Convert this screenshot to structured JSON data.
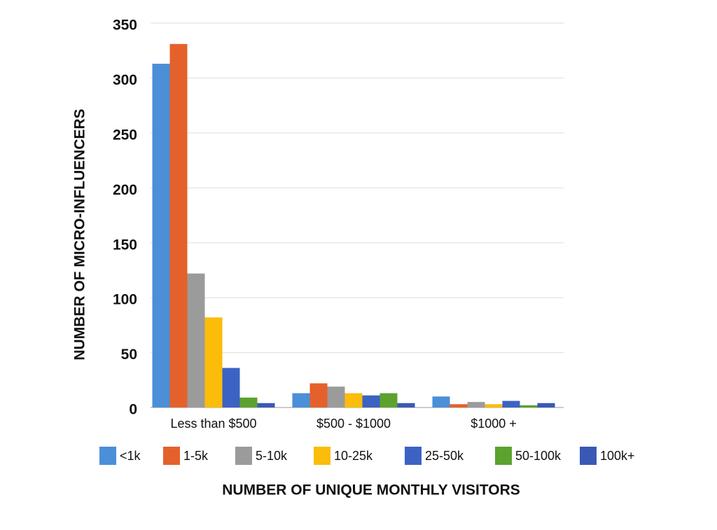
{
  "chart_data": {
    "type": "bar",
    "y_axis_label": "NUMBER OF MICRO-INFLUENCERS",
    "x_axis_label": "NUMBER OF UNIQUE MONTHLY VISITORS",
    "categories": [
      "Less than $500",
      "$500 - $1000",
      "$1000 +"
    ],
    "series": [
      {
        "name": "<1k",
        "color": "#4a8fd8",
        "values": [
          313,
          13,
          10
        ]
      },
      {
        "name": "1-5k",
        "color": "#e5612b",
        "values": [
          331,
          22,
          3
        ]
      },
      {
        "name": "5-10k",
        "color": "#9b9b9b",
        "values": [
          122,
          19,
          5
        ]
      },
      {
        "name": "10-25k",
        "color": "#fbbc0a",
        "values": [
          82,
          13,
          3
        ]
      },
      {
        "name": "25-50k",
        "color": "#3c62c4",
        "values": [
          36,
          11,
          6
        ]
      },
      {
        "name": "50-100k",
        "color": "#5ca22e",
        "values": [
          9,
          13,
          2
        ]
      },
      {
        "name": "100k+",
        "color": "#3a59b5",
        "values": [
          4,
          4,
          4
        ]
      }
    ],
    "ylim": [
      0,
      350
    ],
    "yticks": [
      0,
      50,
      100,
      150,
      200,
      250,
      300,
      350
    ],
    "grid": true,
    "legend": "bottom"
  }
}
